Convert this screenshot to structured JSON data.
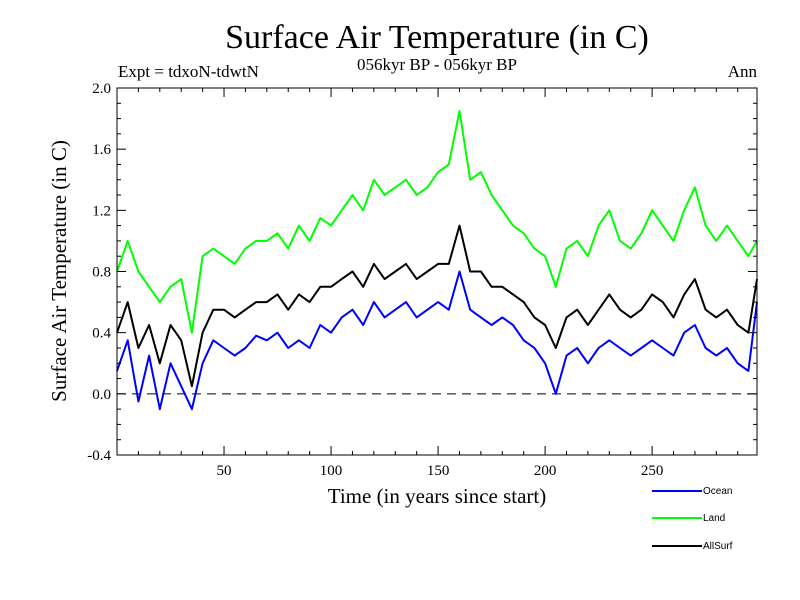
{
  "chart_data": {
    "type": "line",
    "title": "Surface Air Temperature (in C)",
    "experiment": "Expt = tdxoN-tdwtN",
    "period": "056kyr BP - 056kyr BP",
    "season": "Ann",
    "xlabel": "Time (in years since start)",
    "ylabel": "Surface Air Temperature (in C)",
    "xlim": [
      0,
      299
    ],
    "ylim": [
      -0.4,
      2.0
    ],
    "xticks": [
      50,
      100,
      150,
      200,
      250
    ],
    "yticks": [
      -0.4,
      0.0,
      0.4,
      0.8,
      1.2,
      1.6,
      2.0
    ],
    "ytick_labels": [
      "-0.4",
      "0.0",
      "0.4",
      "0.8",
      "1.2",
      "1.6",
      "2.0"
    ],
    "reference_line": 0.0,
    "legend_position": "bottom-right, below plot",
    "colors": {
      "Ocean": "#0000ff",
      "Land": "#00ff00",
      "AllSurf": "#000000"
    },
    "series": [
      {
        "name": "Ocean",
        "x": [
          0,
          5,
          10,
          15,
          20,
          25,
          30,
          35,
          40,
          45,
          50,
          55,
          60,
          65,
          70,
          75,
          80,
          85,
          90,
          95,
          100,
          105,
          110,
          115,
          120,
          125,
          130,
          135,
          140,
          145,
          150,
          155,
          160,
          165,
          170,
          175,
          180,
          185,
          190,
          195,
          200,
          205,
          210,
          215,
          220,
          225,
          230,
          235,
          240,
          245,
          250,
          255,
          260,
          265,
          270,
          275,
          280,
          285,
          290,
          295,
          299
        ],
        "values": [
          0.15,
          0.35,
          -0.05,
          0.25,
          -0.1,
          0.2,
          0.05,
          -0.1,
          0.2,
          0.35,
          0.3,
          0.25,
          0.3,
          0.38,
          0.35,
          0.4,
          0.3,
          0.35,
          0.3,
          0.45,
          0.4,
          0.5,
          0.55,
          0.45,
          0.6,
          0.5,
          0.55,
          0.6,
          0.5,
          0.55,
          0.6,
          0.55,
          0.8,
          0.55,
          0.5,
          0.45,
          0.5,
          0.45,
          0.35,
          0.3,
          0.2,
          0.0,
          0.25,
          0.3,
          0.2,
          0.3,
          0.35,
          0.3,
          0.25,
          0.3,
          0.35,
          0.3,
          0.25,
          0.4,
          0.45,
          0.3,
          0.25,
          0.3,
          0.2,
          0.15,
          0.6
        ]
      },
      {
        "name": "Land",
        "x": [
          0,
          5,
          10,
          15,
          20,
          25,
          30,
          35,
          40,
          45,
          50,
          55,
          60,
          65,
          70,
          75,
          80,
          85,
          90,
          95,
          100,
          105,
          110,
          115,
          120,
          125,
          130,
          135,
          140,
          145,
          150,
          155,
          160,
          165,
          170,
          175,
          180,
          185,
          190,
          195,
          200,
          205,
          210,
          215,
          220,
          225,
          230,
          235,
          240,
          245,
          250,
          255,
          260,
          265,
          270,
          275,
          280,
          285,
          290,
          295,
          299
        ],
        "values": [
          0.8,
          1.0,
          0.8,
          0.7,
          0.6,
          0.7,
          0.75,
          0.4,
          0.9,
          0.95,
          0.9,
          0.85,
          0.95,
          1.0,
          1.0,
          1.05,
          0.95,
          1.1,
          1.0,
          1.15,
          1.1,
          1.2,
          1.3,
          1.2,
          1.4,
          1.3,
          1.35,
          1.4,
          1.3,
          1.35,
          1.45,
          1.5,
          1.85,
          1.4,
          1.45,
          1.3,
          1.2,
          1.1,
          1.05,
          0.95,
          0.9,
          0.7,
          0.95,
          1.0,
          0.9,
          1.1,
          1.2,
          1.0,
          0.95,
          1.05,
          1.2,
          1.1,
          1.0,
          1.2,
          1.35,
          1.1,
          1.0,
          1.1,
          1.0,
          0.9,
          1.0
        ]
      },
      {
        "name": "AllSurf",
        "x": [
          0,
          5,
          10,
          15,
          20,
          25,
          30,
          35,
          40,
          45,
          50,
          55,
          60,
          65,
          70,
          75,
          80,
          85,
          90,
          95,
          100,
          105,
          110,
          115,
          120,
          125,
          130,
          135,
          140,
          145,
          150,
          155,
          160,
          165,
          170,
          175,
          180,
          185,
          190,
          195,
          200,
          205,
          210,
          215,
          220,
          225,
          230,
          235,
          240,
          245,
          250,
          255,
          260,
          265,
          270,
          275,
          280,
          285,
          290,
          295,
          299
        ],
        "values": [
          0.4,
          0.6,
          0.3,
          0.45,
          0.2,
          0.45,
          0.35,
          0.05,
          0.4,
          0.55,
          0.55,
          0.5,
          0.55,
          0.6,
          0.6,
          0.65,
          0.55,
          0.65,
          0.6,
          0.7,
          0.7,
          0.75,
          0.8,
          0.7,
          0.85,
          0.75,
          0.8,
          0.85,
          0.75,
          0.8,
          0.85,
          0.85,
          1.1,
          0.8,
          0.8,
          0.7,
          0.7,
          0.65,
          0.6,
          0.5,
          0.45,
          0.3,
          0.5,
          0.55,
          0.45,
          0.55,
          0.65,
          0.55,
          0.5,
          0.55,
          0.65,
          0.6,
          0.5,
          0.65,
          0.75,
          0.55,
          0.5,
          0.55,
          0.45,
          0.4,
          0.75
        ]
      }
    ]
  }
}
